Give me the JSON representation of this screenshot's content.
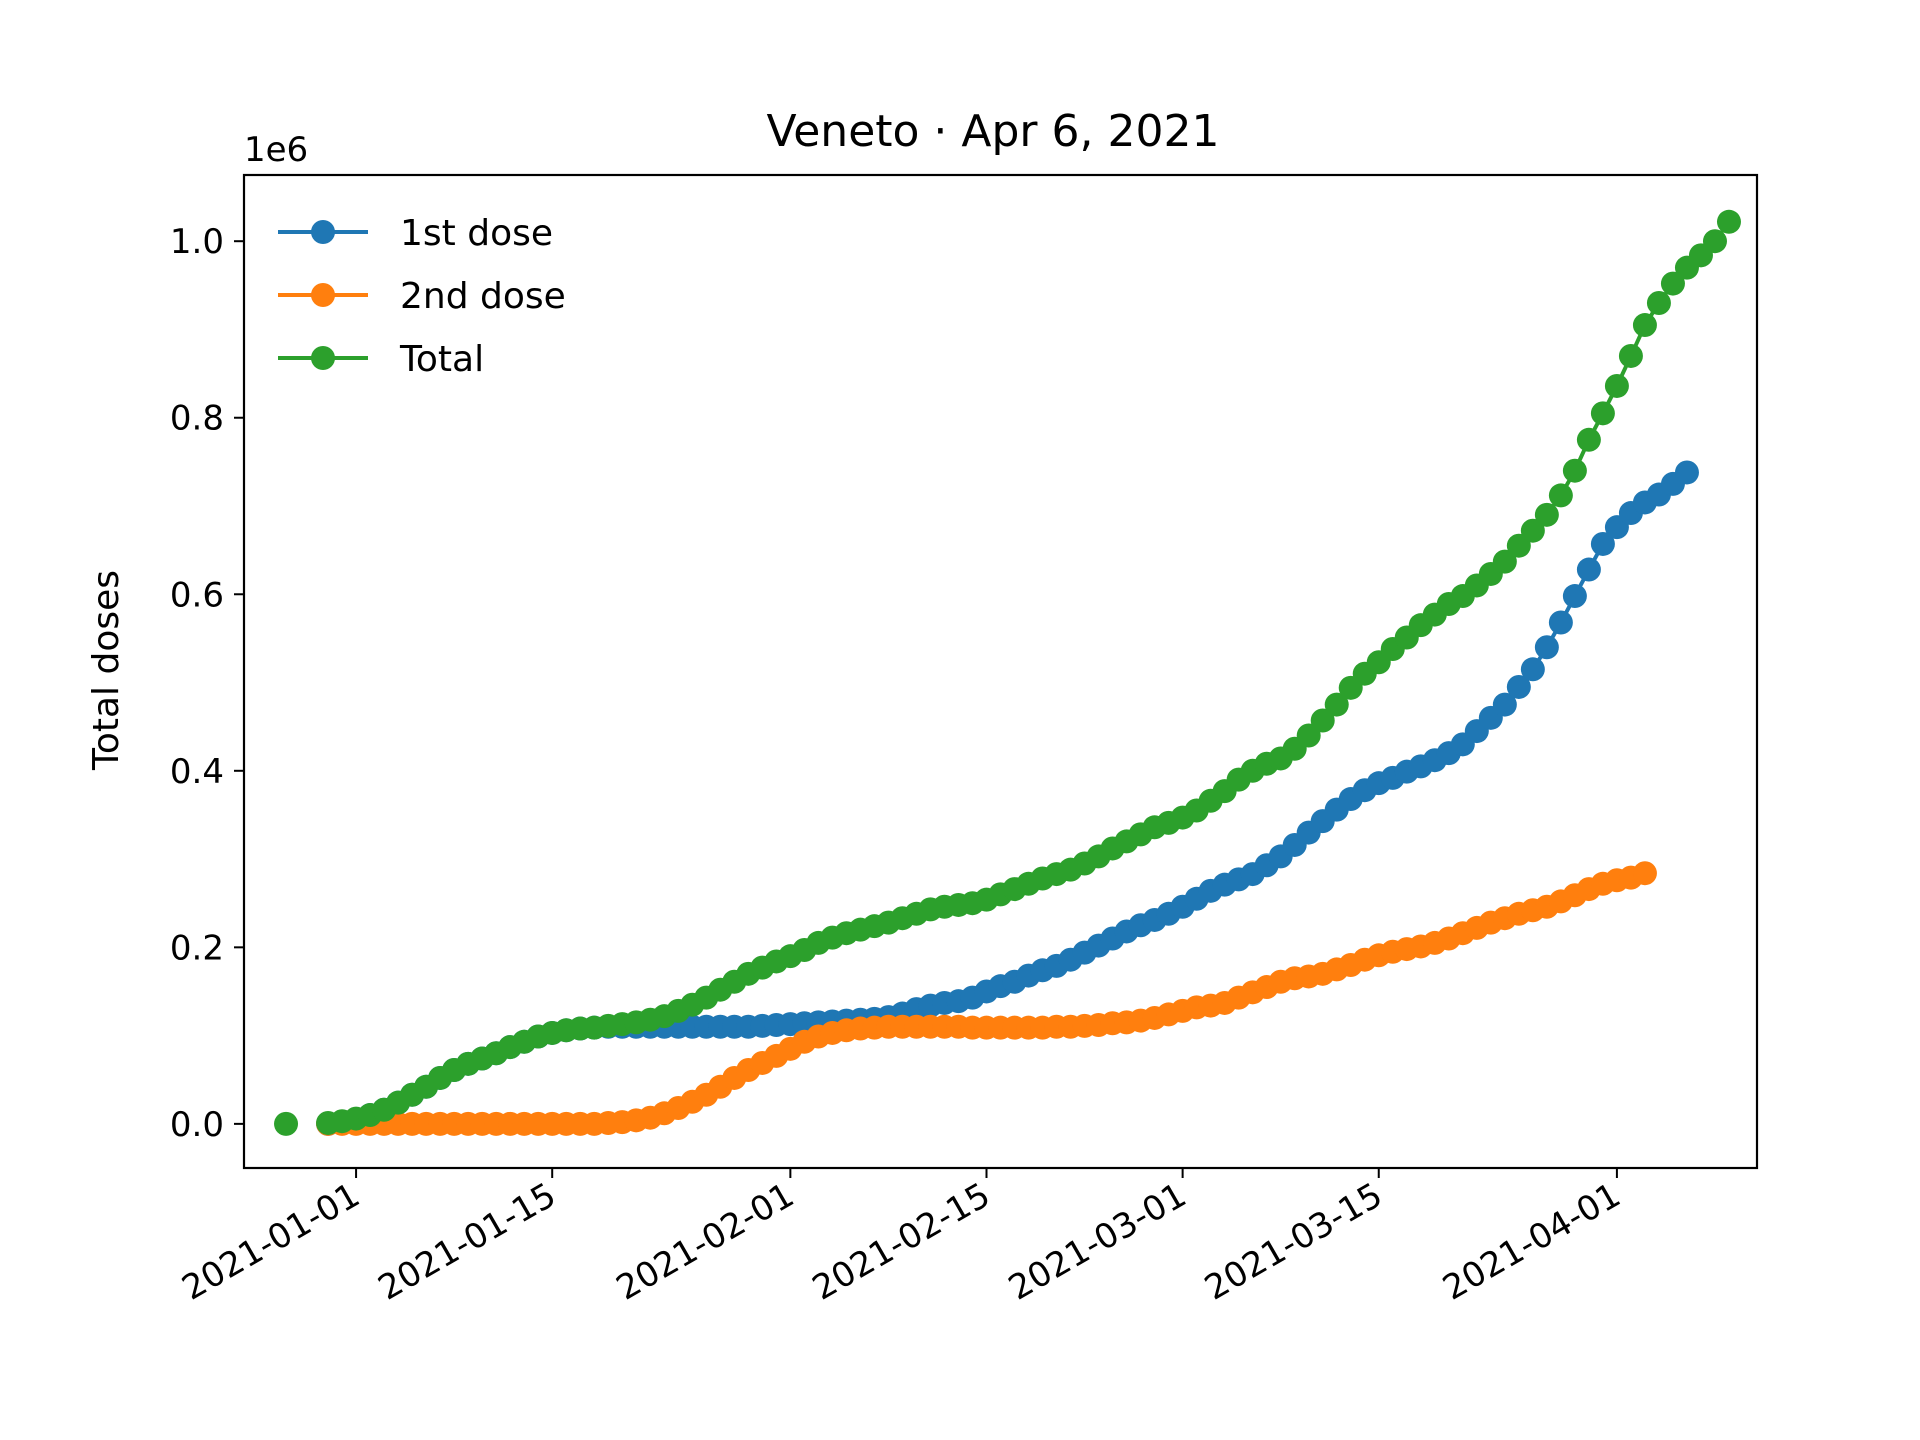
{
  "chart_data": {
    "type": "line",
    "title": "Veneto · Apr 6, 2021",
    "xlabel": "",
    "ylabel": "Total doses",
    "y_offset_label": "1e6",
    "x_start_date": "2020-12-27",
    "x_end_date": "2021-04-06",
    "xlim": [
      "2020-12-24",
      "2021-04-11"
    ],
    "ylim": [
      -50000,
      1075000
    ],
    "y_ticks": [
      0,
      200000,
      400000,
      600000,
      800000,
      1000000
    ],
    "y_tick_labels": [
      "0.0",
      "0.2",
      "0.4",
      "0.6",
      "0.8",
      "1.0"
    ],
    "x_ticks": [
      "2021-01-01",
      "2021-01-15",
      "2021-02-01",
      "2021-02-15",
      "2021-03-01",
      "2021-03-15",
      "2021-04-01"
    ],
    "x_tick_labels": [
      "2021-01-01",
      "2021-01-15",
      "2021-02-01",
      "2021-02-15",
      "2021-03-01",
      "2021-03-15",
      "2021-04-01"
    ],
    "grid": false,
    "legend_position": "top-left",
    "series": [
      {
        "name": "1st dose",
        "color": "#1f77b4",
        "start_date": "2020-12-30",
        "values": [
          0,
          2000,
          5000,
          10000,
          16000,
          24000,
          33000,
          42000,
          52000,
          61000,
          68000,
          74000,
          80000,
          87000,
          93000,
          99000,
          103000,
          106000,
          108000,
          109000,
          110000,
          110000,
          110000,
          110000,
          110000,
          110000,
          110000,
          110000,
          110000,
          110000,
          110000,
          111000,
          112000,
          113000,
          114000,
          115000,
          116000,
          117000,
          118000,
          119000,
          121000,
          125000,
          130000,
          134000,
          137000,
          139000,
          143000,
          150000,
          156000,
          161000,
          168000,
          174000,
          179000,
          186000,
          194000,
          202000,
          210000,
          218000,
          225000,
          231000,
          238000,
          246000,
          255000,
          264000,
          271000,
          277000,
          283000,
          293000,
          303000,
          316000,
          330000,
          343000,
          356000,
          368000,
          378000,
          386000,
          392000,
          399000,
          405000,
          412000,
          420000,
          430000,
          445000,
          460000,
          475000,
          495000,
          515000,
          540000,
          568000,
          598000,
          628000,
          657000,
          676000,
          692000,
          704000,
          713000,
          725000,
          738000
        ]
      },
      {
        "name": "2nd dose",
        "color": "#ff7f0e",
        "start_date": "2020-12-30",
        "values": [
          0,
          0,
          0,
          0,
          0,
          0,
          0,
          0,
          0,
          0,
          0,
          0,
          0,
          0,
          0,
          0,
          0,
          0,
          0,
          0,
          1000,
          2000,
          4000,
          7000,
          12000,
          18000,
          25000,
          33000,
          42000,
          52000,
          61000,
          69000,
          77000,
          85000,
          93000,
          99000,
          103000,
          106000,
          108000,
          109000,
          110000,
          110000,
          110000,
          110000,
          110000,
          110000,
          109000,
          109000,
          109000,
          109000,
          109000,
          109000,
          110000,
          110000,
          111000,
          112000,
          114000,
          115000,
          117000,
          120000,
          124000,
          128000,
          132000,
          134000,
          137000,
          143000,
          149000,
          155000,
          161000,
          165000,
          167000,
          170000,
          175000,
          180000,
          186000,
          191000,
          195000,
          198000,
          201000,
          205000,
          210000,
          216000,
          222000,
          228000,
          233000,
          238000,
          242000,
          246000,
          252000,
          259000,
          266000,
          272000,
          276000,
          279000,
          284000
        ]
      },
      {
        "name": "Total",
        "color": "#2ca02c",
        "start_date": "2020-12-27",
        "values": [
          0,
          null,
          null,
          1000,
          3000,
          6000,
          10000,
          16000,
          24000,
          33000,
          42000,
          52000,
          61000,
          68000,
          74000,
          80000,
          87000,
          93000,
          99000,
          103000,
          106000,
          108000,
          109000,
          111000,
          113000,
          115000,
          118000,
          122000,
          128000,
          135000,
          143000,
          152000,
          161000,
          170000,
          177000,
          184000,
          190000,
          197000,
          205000,
          211000,
          216000,
          220000,
          224000,
          228000,
          233000,
          238000,
          243000,
          246000,
          248000,
          250000,
          254000,
          260000,
          266000,
          272000,
          278000,
          283000,
          288000,
          295000,
          303000,
          312000,
          320000,
          328000,
          336000,
          341000,
          347000,
          355000,
          366000,
          377000,
          390000,
          400000,
          408000,
          414000,
          425000,
          440000,
          457000,
          475000,
          494000,
          510000,
          523000,
          538000,
          551000,
          565000,
          577000,
          589000,
          598000,
          610000,
          623000,
          637000,
          655000,
          672000,
          690000,
          712000,
          740000,
          775000,
          805000,
          836000,
          870000,
          905000,
          930000,
          952000,
          970000,
          984000,
          1000000,
          1022000
        ]
      }
    ]
  }
}
